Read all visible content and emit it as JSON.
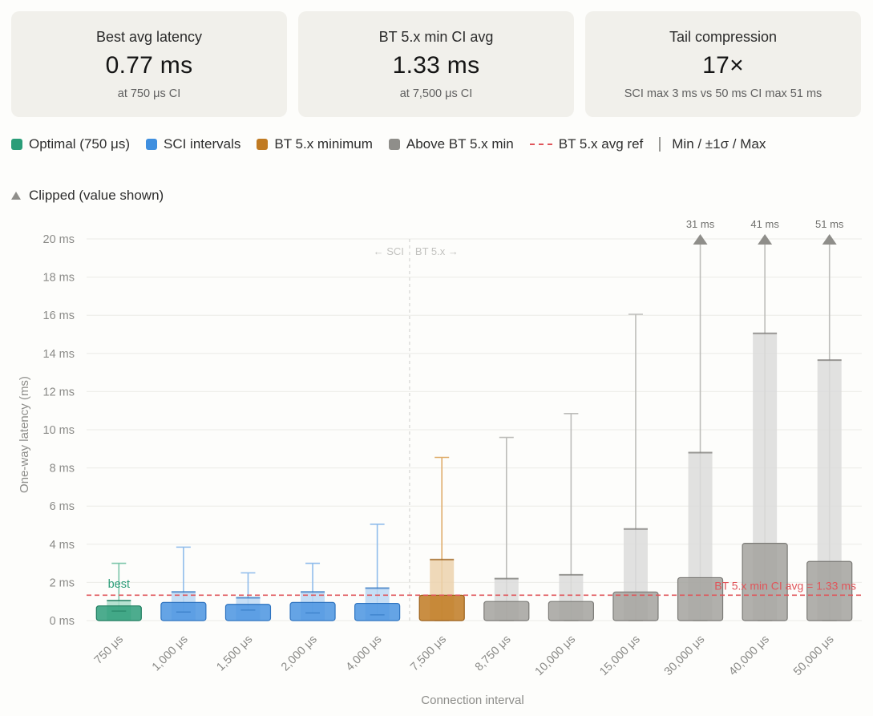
{
  "cards": [
    {
      "label": "Best avg latency",
      "value": "0.77 ms",
      "sub": "at 750 μs CI"
    },
    {
      "label": "BT 5.x min CI avg",
      "value": "1.33 ms",
      "sub": "at 7,500 μs CI"
    },
    {
      "label": "Tail compression",
      "value": "17×",
      "sub": "SCI max 3 ms vs 50 ms CI max 51 ms"
    }
  ],
  "legend": [
    {
      "name": "legend-optimal",
      "label": "Optimal (750 μs)",
      "kind": "swatch",
      "color": "#2a9d78"
    },
    {
      "name": "legend-sci",
      "label": "SCI intervals",
      "kind": "swatch",
      "color": "#3f8fdf"
    },
    {
      "name": "legend-bt-min",
      "label": "BT 5.x minimum",
      "kind": "swatch",
      "color": "#c07a22"
    },
    {
      "name": "legend-above-bt",
      "label": "Above BT 5.x min",
      "kind": "swatch",
      "color": "#8f8e8a"
    },
    {
      "name": "legend-avg-ref",
      "label": "BT 5.x avg ref",
      "kind": "dash",
      "color": "#e0555a"
    },
    {
      "name": "legend-min-sigma-max",
      "label": "Min / ±1σ / Max",
      "kind": "vbar",
      "color": "#9a9a96"
    },
    {
      "name": "legend-clipped",
      "label": "Clipped (value shown)",
      "kind": "triangle",
      "color": "#8f8e8a"
    }
  ],
  "chart_data": {
    "type": "bar",
    "xlabel": "Connection interval",
    "ylabel": "One-way latency (ms)",
    "ylim": [
      0,
      20
    ],
    "yticks": [
      0,
      2,
      4,
      6,
      8,
      10,
      12,
      14,
      16,
      18,
      20
    ],
    "ytick_labels": [
      "0 ms",
      "2 ms",
      "4 ms",
      "6 ms",
      "8 ms",
      "10 ms",
      "12 ms",
      "14 ms",
      "16 ms",
      "18 ms",
      "20 ms"
    ],
    "grid": true,
    "categories": [
      "750 μs",
      "1,000 μs",
      "1,500 μs",
      "2,000 μs",
      "4,000 μs",
      "7,500 μs",
      "8,750 μs",
      "10,000 μs",
      "15,000 μs",
      "30,000 μs",
      "40,000 μs",
      "50,000 μs"
    ],
    "groups": [
      "optimal",
      "sci",
      "sci",
      "sci",
      "sci",
      "btmin",
      "above",
      "above",
      "above",
      "above",
      "above",
      "above"
    ],
    "colors": {
      "optimal": {
        "fill": "#2e9e7a",
        "stroke": "#1f7d5f",
        "light": "#a9dcc9",
        "whisker": "#7cc5aa"
      },
      "sci": {
        "fill": "#4a94e0",
        "stroke": "#2f74c0",
        "light": "#bcd8f3",
        "whisker": "#8fbceb"
      },
      "btmin": {
        "fill": "#c07a22",
        "stroke": "#9c6018",
        "light": "#ecd2ad",
        "whisker": "#dfad6c"
      },
      "above": {
        "fill": "#a3a29e",
        "stroke": "#7b7a76",
        "light": "#dcdcda",
        "whisker": "#bdbdba"
      }
    },
    "avg": [
      0.77,
      0.95,
      0.85,
      0.95,
      0.9,
      1.33,
      1.0,
      1.0,
      1.5,
      2.25,
      4.05,
      3.1
    ],
    "min": [
      0.5,
      0.45,
      0.55,
      0.4,
      0.3,
      0.0,
      0.0,
      0.0,
      0.0,
      0.0,
      0.0,
      0.0
    ],
    "sd_upper": [
      1.05,
      1.5,
      1.2,
      1.5,
      1.7,
      3.2,
      2.2,
      2.4,
      4.8,
      8.8,
      15.05,
      13.65
    ],
    "max": [
      3.0,
      3.85,
      2.5,
      3.0,
      5.05,
      8.55,
      9.6,
      10.85,
      16.05,
      31,
      41,
      51
    ],
    "clipped_labels": [
      "",
      "",
      "",
      "",
      "",
      "",
      "",
      "",
      "",
      "31 ms",
      "41 ms",
      "51 ms"
    ],
    "reference_line": {
      "value": 1.33,
      "label": "BT 5.x min CI avg = 1.33 ms",
      "color": "#e0555a"
    },
    "best_index": 0,
    "best_label": "best",
    "divider_labels": {
      "left": "← SCI",
      "right": "BT 5.x →"
    }
  }
}
